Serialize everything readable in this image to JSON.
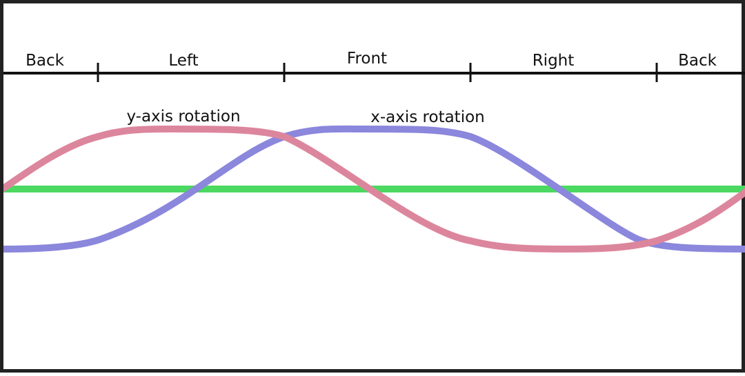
{
  "regions": [
    {
      "label": "Back"
    },
    {
      "label": "Left"
    },
    {
      "label": "Front"
    },
    {
      "label": "Right"
    },
    {
      "label": "Back"
    }
  ],
  "curves": {
    "y_rotation": {
      "label": "y-axis rotation",
      "color": "#dc869d"
    },
    "x_rotation": {
      "label": "x-axis rotation",
      "color": "#8b87dc"
    },
    "baseline": {
      "color": "#4cd962"
    }
  },
  "axis_color": "#111111"
}
